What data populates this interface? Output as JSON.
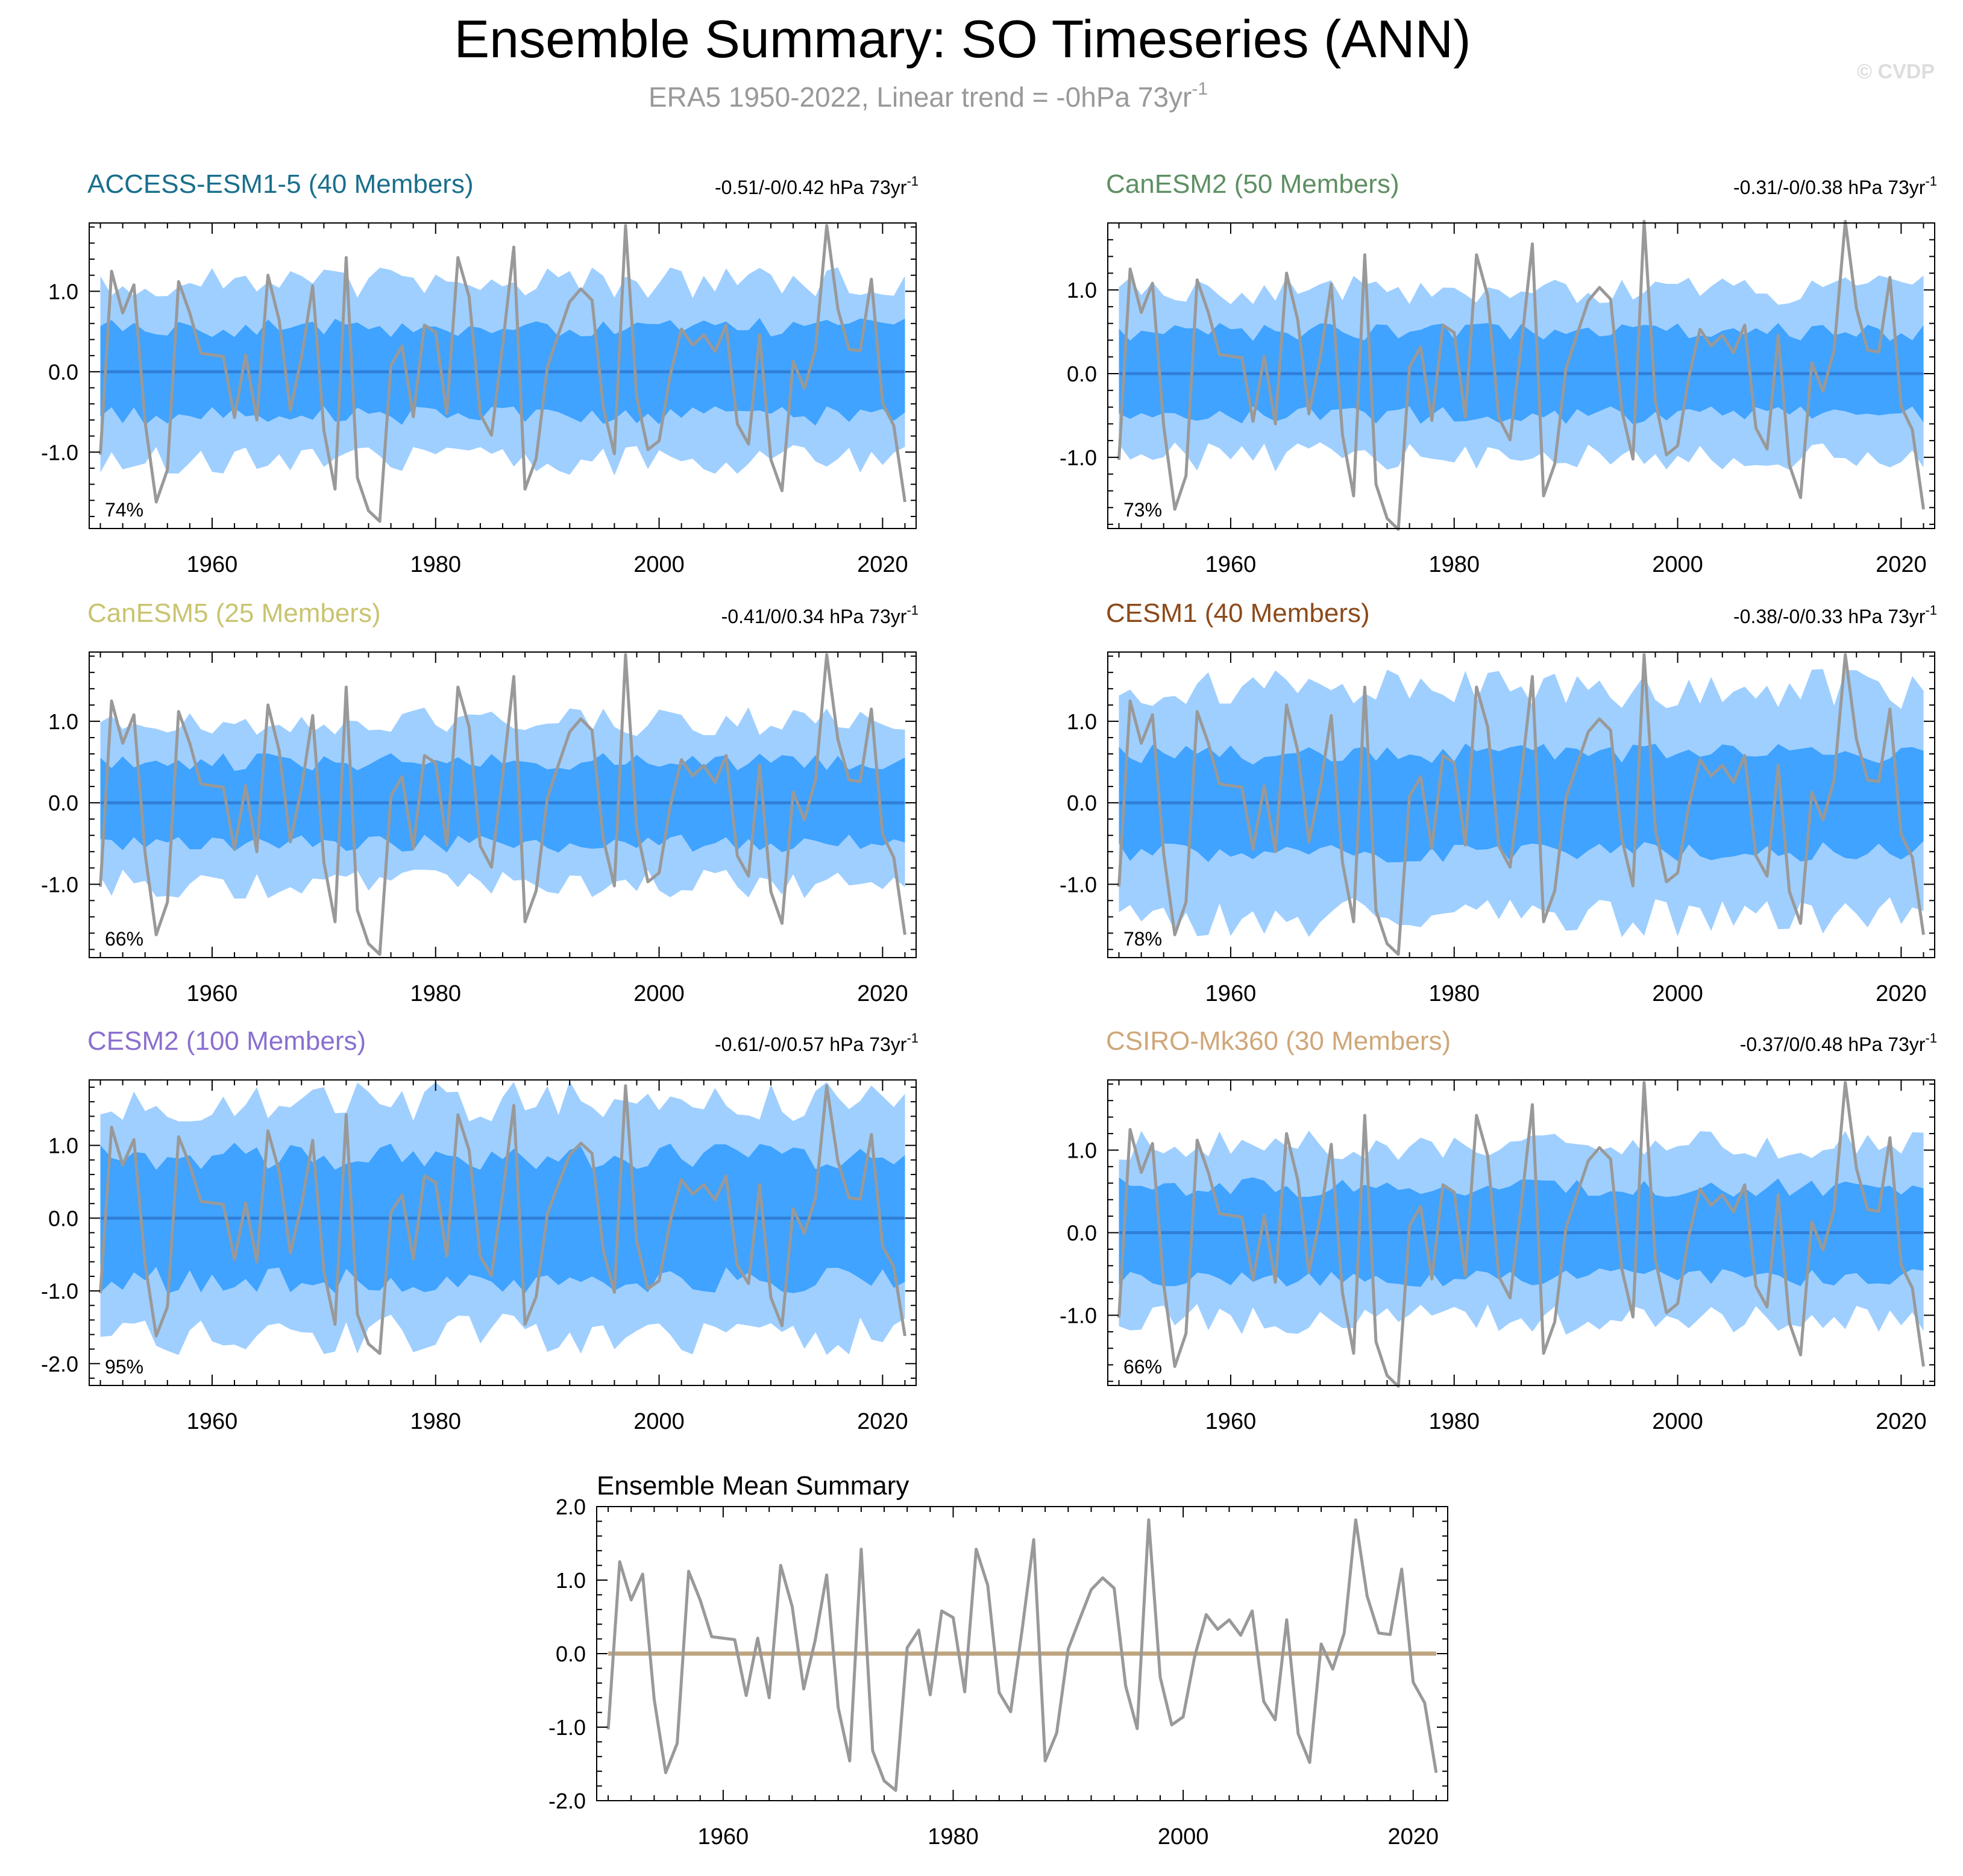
{
  "figure": {
    "title": "Ensemble Summary: SO Timeseries (ANN)",
    "subtitle_main": "ERA5 1950-2022, Linear trend = -0hPa 73yr",
    "subtitle_sup": "-1",
    "watermark": "© CVDP"
  },
  "colors": {
    "outer_band": "#9fcfff",
    "inner_band": "#3fa3ff",
    "ensemble_mean_line": "#2f7fd8",
    "obs_line": "#999999",
    "summary_mean_line": "#bfa57f"
  },
  "obs": {
    "years_start": 1950,
    "values": [
      -1.03,
      1.25,
      0.73,
      1.08,
      -0.62,
      -1.62,
      -1.22,
      1.12,
      0.73,
      0.23,
      0.21,
      0.19,
      -0.57,
      0.21,
      -0.6,
      1.2,
      0.64,
      -0.48,
      0.18,
      1.07,
      -0.73,
      -1.46,
      1.42,
      -1.32,
      -1.73,
      -1.86,
      0.08,
      0.32,
      -0.56,
      0.58,
      0.49,
      -0.52,
      1.42,
      0.93,
      -0.53,
      -0.79,
      0.33,
      1.55,
      -1.46,
      -1.08,
      0.06,
      0.47,
      0.87,
      1.03,
      0.89,
      -0.44,
      -1.02,
      1.82,
      -0.32,
      -0.97,
      -0.86,
      -0.04,
      0.53,
      0.33,
      0.46,
      0.25,
      0.58,
      -0.65,
      -0.9,
      0.46,
      -1.09,
      -1.48,
      0.13,
      -0.21,
      0.28,
      1.82,
      0.78,
      0.28,
      0.26,
      1.15,
      -0.39,
      -0.67,
      -1.62
    ]
  },
  "panels": [
    {
      "label": "ACCESS-ESM1-5 (40 Members)",
      "color": "#1a6f8c",
      "range_text": "-0.51/-0/0.42 hPa 73yr",
      "range_sup": "-1",
      "percent": "74%",
      "ylim": [
        -1.95,
        1.85
      ],
      "yticks": [
        "1.0",
        "0.0",
        "-1.0"
      ],
      "yvals": [
        1.0,
        0.0,
        -1.0
      ],
      "inner": 0.55,
      "outer": 1.1
    },
    {
      "label": "CanESM2 (50 Members)",
      "color": "#5e8f63",
      "range_text": "-0.31/-0/0.38 hPa 73yr",
      "range_sup": "-1",
      "percent": "73%",
      "ylim": [
        -1.85,
        1.8
      ],
      "yticks": [
        "1.0",
        "0.0",
        "-1.0"
      ],
      "yvals": [
        1.0,
        0.0,
        -1.0
      ],
      "inner": 0.5,
      "outer": 1.0
    },
    {
      "label": "CanESM5 (25 Members)",
      "color": "#c9c46f",
      "range_text": "-0.41/0/0.34 hPa 73yr",
      "range_sup": "-1",
      "percent": "66%",
      "ylim": [
        -1.9,
        1.85
      ],
      "yticks": [
        "1.0",
        "0.0",
        "-1.0"
      ],
      "yvals": [
        1.0,
        0.0,
        -1.0
      ],
      "inner": 0.5,
      "outer": 1.0
    },
    {
      "label": "CESM1 (40 Members)",
      "color": "#8c4a1a",
      "range_text": "-0.38/-0/0.33 hPa 73yr",
      "range_sup": "-1",
      "percent": "78%",
      "ylim": [
        -1.9,
        1.85
      ],
      "yticks": [
        "1.0",
        "0.0",
        "-1.0"
      ],
      "yvals": [
        1.0,
        0.0,
        -1.0
      ],
      "inner": 0.6,
      "outer": 1.4
    },
    {
      "label": "CESM2 (100 Members)",
      "color": "#8a6fcf",
      "range_text": "-0.61/-0/0.57 hPa 73yr",
      "range_sup": "-1",
      "percent": "95%",
      "ylim": [
        -2.3,
        1.9
      ],
      "yticks": [
        "1.0",
        "0.0",
        "-1.0",
        "-2.0"
      ],
      "yvals": [
        1.0,
        0.0,
        -1.0,
        -2.0
      ],
      "inner": 0.85,
      "outer": 1.6
    },
    {
      "label": "CSIRO-Mk360 (30 Members)",
      "color": "#cfa77a",
      "range_text": "-0.37/0/0.48 hPa 73yr",
      "range_sup": "-1",
      "percent": "66%",
      "ylim": [
        -1.85,
        1.85
      ],
      "yticks": [
        "1.0",
        "0.0",
        "-1.0"
      ],
      "yvals": [
        1.0,
        0.0,
        -1.0
      ],
      "inner": 0.55,
      "outer": 1.05
    }
  ],
  "summary": {
    "title": "Ensemble Mean Summary",
    "ylim": [
      -2.0,
      2.0
    ],
    "yticks": [
      "2.0",
      "1.0",
      "0.0",
      "-1.0",
      "-2.0"
    ],
    "yvals": [
      2.0,
      1.0,
      0.0,
      -1.0,
      -2.0
    ]
  },
  "xticks": [
    "1960",
    "1980",
    "2000",
    "2020"
  ],
  "xtick_years": [
    1960,
    1980,
    2000,
    2020
  ],
  "x_range": [
    1949,
    2023
  ],
  "chart_data": {
    "type": "line",
    "title": "Ensemble Summary: SO Timeseries (ANN)",
    "xlabel": "",
    "ylabel": "",
    "x_start": 1950,
    "x_end": 2022,
    "series": [
      {
        "name": "ERA5",
        "values": [
          -1.03,
          1.25,
          0.73,
          1.08,
          -0.62,
          -1.62,
          -1.22,
          1.12,
          0.73,
          0.23,
          0.21,
          0.19,
          -0.57,
          0.21,
          -0.6,
          1.2,
          0.64,
          -0.48,
          0.18,
          1.07,
          -0.73,
          -1.46,
          1.42,
          -1.32,
          -1.73,
          -1.86,
          0.08,
          0.32,
          -0.56,
          0.58,
          0.49,
          -0.52,
          1.42,
          0.93,
          -0.53,
          -0.79,
          0.33,
          1.55,
          -1.46,
          -1.08,
          0.06,
          0.47,
          0.87,
          1.03,
          0.89,
          -0.44,
          -1.02,
          1.82,
          -0.32,
          -0.97,
          -0.86,
          -0.04,
          0.53,
          0.33,
          0.46,
          0.25,
          0.58,
          -0.65,
          -0.9,
          0.46,
          -1.09,
          -1.48,
          0.13,
          -0.21,
          0.28,
          1.82,
          0.78,
          0.28,
          0.26,
          1.15,
          -0.39,
          -0.67,
          -1.62
        ]
      }
    ],
    "ensemble_mean": 0.0
  }
}
